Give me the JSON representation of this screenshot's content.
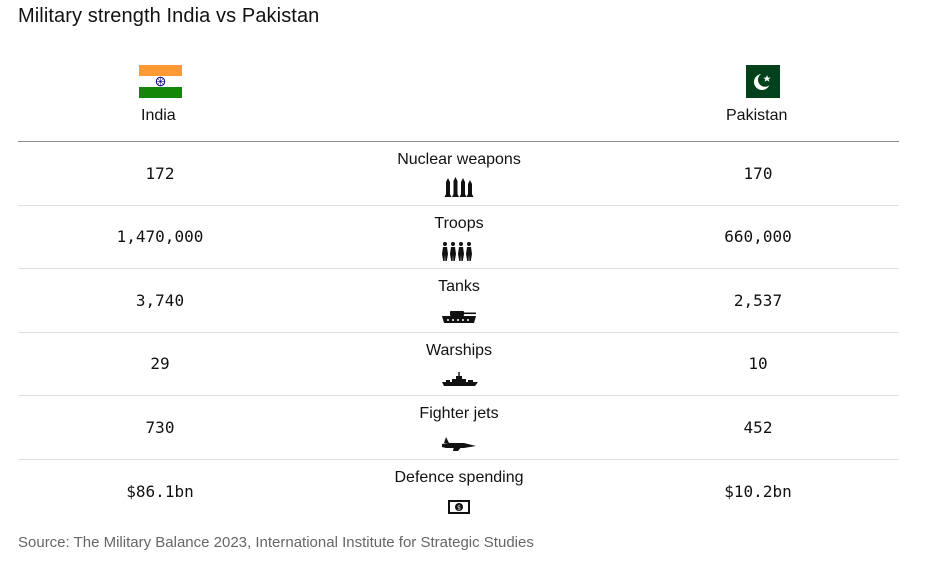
{
  "title": "Military strength India vs Pakistan",
  "countries": {
    "left": {
      "name": "India",
      "flag_icon": "india-flag-icon"
    },
    "right": {
      "name": "Pakistan",
      "flag_icon": "pakistan-flag-icon"
    }
  },
  "rows": [
    {
      "category": "Nuclear weapons",
      "icon": "missiles-icon",
      "india": "172",
      "pakistan": "170"
    },
    {
      "category": "Troops",
      "icon": "soldiers-icon",
      "india": "1,470,000",
      "pakistan": "660,000"
    },
    {
      "category": "Tanks",
      "icon": "tank-icon",
      "india": "3,740",
      "pakistan": "2,537"
    },
    {
      "category": "Warships",
      "icon": "warship-icon",
      "india": "29",
      "pakistan": "10"
    },
    {
      "category": "Fighter jets",
      "icon": "fighter-jet-icon",
      "india": "730",
      "pakistan": "452"
    },
    {
      "category": "Defence spending",
      "icon": "banknote-icon",
      "india": "$86.1bn",
      "pakistan": "$10.2bn"
    }
  ],
  "chart_data": {
    "type": "table",
    "title": "Military strength India vs Pakistan",
    "columns": [
      "India",
      "",
      "Pakistan"
    ],
    "categories": [
      "Nuclear weapons",
      "Troops",
      "Tanks",
      "Warships",
      "Fighter jets",
      "Defence spending"
    ],
    "series": [
      {
        "name": "India",
        "values": [
          172,
          1470000,
          3740,
          29,
          730,
          86.1
        ]
      },
      {
        "name": "Pakistan",
        "values": [
          170,
          660000,
          2537,
          10,
          452,
          10.2
        ]
      }
    ]
  },
  "source": "Source: The Military Balance 2023, International Institute for Strategic Studies",
  "colors": {
    "saffron": "#FF9933",
    "india_green": "#138808",
    "chakra_blue": "#000080",
    "pakistan_green": "#01411C",
    "rule": "#8a8a8a",
    "row_divider": "#e0e0e0"
  }
}
